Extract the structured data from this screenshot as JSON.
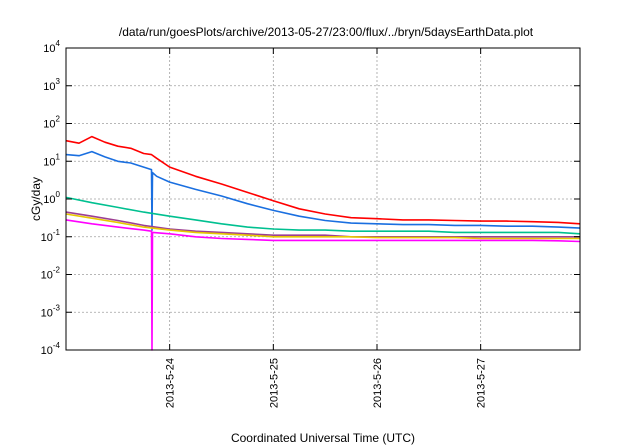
{
  "chart_data": {
    "type": "line",
    "title": "/data/run/goesPlots/archive/2013-05-27/23:00/flux/../bryn/5daysEarthData.plot",
    "xlabel": "Coordinated Universal Time (UTC)",
    "ylabel": "cGy/day",
    "yscale": "log",
    "ylim": [
      0.0001,
      10000
    ],
    "y_ticks": [
      {
        "base": "10",
        "exp": "-4",
        "value": 0.0001
      },
      {
        "base": "10",
        "exp": "-3",
        "value": 0.001
      },
      {
        "base": "10",
        "exp": "-2",
        "value": 0.01
      },
      {
        "base": "10",
        "exp": "-1",
        "value": 0.1
      },
      {
        "base": "10",
        "exp": "0",
        "value": 1
      },
      {
        "base": "10",
        "exp": "1",
        "value": 10
      },
      {
        "base": "10",
        "exp": "2",
        "value": 100
      },
      {
        "base": "10",
        "exp": "3",
        "value": 1000
      },
      {
        "base": "10",
        "exp": "4",
        "value": 10000
      }
    ],
    "xlim": [
      "2013-05-23T00:00",
      "2013-05-27T23:00"
    ],
    "x_ticks": [
      "2013-5-24",
      "2013-5-25",
      "2013-5-26",
      "2013-5-27"
    ],
    "x_tick_values": [
      "2013-05-24T00:00",
      "2013-05-25T00:00",
      "2013-05-26T00:00",
      "2013-05-27T00:00"
    ],
    "grid": true,
    "series": [
      {
        "color": "#ff0000",
        "x": [
          "2013-05-23T00:00",
          "2013-05-23T03:00",
          "2013-05-23T06:00",
          "2013-05-23T09:00",
          "2013-05-23T12:00",
          "2013-05-23T15:00",
          "2013-05-23T18:00",
          "2013-05-23T19:48",
          "2013-05-23T21:00",
          "2013-05-24T00:00",
          "2013-05-24T06:00",
          "2013-05-24T12:00",
          "2013-05-24T18:00",
          "2013-05-25T00:00",
          "2013-05-25T06:00",
          "2013-05-25T12:00",
          "2013-05-25T18:00",
          "2013-05-26T00:00",
          "2013-05-26T06:00",
          "2013-05-26T12:00",
          "2013-05-26T18:00",
          "2013-05-27T00:00",
          "2013-05-27T06:00",
          "2013-05-27T12:00",
          "2013-05-27T18:00",
          "2013-05-27T23:00"
        ],
        "values": [
          35,
          30,
          45,
          32,
          25,
          22,
          16,
          15,
          12,
          7,
          4,
          2.5,
          1.5,
          0.9,
          0.55,
          0.4,
          0.32,
          0.3,
          0.28,
          0.28,
          0.27,
          0.26,
          0.26,
          0.25,
          0.24,
          0.22
        ]
      },
      {
        "color": "#1a6fe0",
        "x": [
          "2013-05-23T00:00",
          "2013-05-23T03:00",
          "2013-05-23T06:00",
          "2013-05-23T09:00",
          "2013-05-23T12:00",
          "2013-05-23T15:00",
          "2013-05-23T18:00",
          "2013-05-23T19:48",
          "2013-05-23T19:55",
          "2013-05-23T20:02",
          "2013-05-23T21:00",
          "2013-05-24T00:00",
          "2013-05-24T06:00",
          "2013-05-24T12:00",
          "2013-05-24T18:00",
          "2013-05-25T00:00",
          "2013-05-25T06:00",
          "2013-05-25T12:00",
          "2013-05-25T18:00",
          "2013-05-26T00:00",
          "2013-05-26T06:00",
          "2013-05-26T12:00",
          "2013-05-26T18:00",
          "2013-05-27T00:00",
          "2013-05-27T06:00",
          "2013-05-27T12:00",
          "2013-05-27T18:00",
          "2013-05-27T23:00"
        ],
        "values": [
          15,
          14,
          18,
          13,
          10,
          9,
          7,
          6,
          0.15,
          5,
          4,
          2.8,
          1.8,
          1.2,
          0.75,
          0.5,
          0.35,
          0.27,
          0.23,
          0.22,
          0.21,
          0.21,
          0.2,
          0.2,
          0.19,
          0.19,
          0.18,
          0.17
        ]
      },
      {
        "color": "#00c090",
        "x": [
          "2013-05-23T00:00",
          "2013-05-23T06:00",
          "2013-05-23T12:00",
          "2013-05-23T18:00",
          "2013-05-24T00:00",
          "2013-05-24T06:00",
          "2013-05-24T12:00",
          "2013-05-24T18:00",
          "2013-05-25T00:00",
          "2013-05-25T06:00",
          "2013-05-25T12:00",
          "2013-05-25T18:00",
          "2013-05-26T00:00",
          "2013-05-26T06:00",
          "2013-05-26T12:00",
          "2013-05-26T18:00",
          "2013-05-27T00:00",
          "2013-05-27T06:00",
          "2013-05-27T12:00",
          "2013-05-27T18:00",
          "2013-05-27T23:00"
        ],
        "values": [
          1.1,
          0.8,
          0.6,
          0.45,
          0.35,
          0.28,
          0.22,
          0.18,
          0.16,
          0.15,
          0.15,
          0.14,
          0.14,
          0.14,
          0.14,
          0.13,
          0.13,
          0.13,
          0.13,
          0.13,
          0.12
        ]
      },
      {
        "color": "#9c3f93",
        "x": [
          "2013-05-23T00:00",
          "2013-05-23T06:00",
          "2013-05-23T12:00",
          "2013-05-23T18:00",
          "2013-05-24T00:00",
          "2013-05-24T06:00",
          "2013-05-24T12:00",
          "2013-05-24T18:00",
          "2013-05-25T00:00",
          "2013-05-25T06:00",
          "2013-05-25T12:00",
          "2013-05-25T18:00",
          "2013-05-26T00:00",
          "2013-05-26T06:00",
          "2013-05-26T12:00",
          "2013-05-26T18:00",
          "2013-05-27T00:00",
          "2013-05-27T06:00",
          "2013-05-27T12:00",
          "2013-05-27T18:00",
          "2013-05-27T23:00"
        ],
        "values": [
          0.45,
          0.35,
          0.27,
          0.2,
          0.16,
          0.14,
          0.13,
          0.12,
          0.11,
          0.11,
          0.11,
          0.1,
          0.1,
          0.1,
          0.1,
          0.1,
          0.1,
          0.1,
          0.1,
          0.1,
          0.1
        ]
      },
      {
        "color": "#e8c800",
        "x": [
          "2013-05-23T00:00",
          "2013-05-23T06:00",
          "2013-05-23T12:00",
          "2013-05-23T18:00",
          "2013-05-24T00:00",
          "2013-05-24T06:00",
          "2013-05-24T12:00",
          "2013-05-24T18:00",
          "2013-05-25T00:00",
          "2013-05-25T06:00",
          "2013-05-25T12:00",
          "2013-05-25T18:00",
          "2013-05-26T00:00",
          "2013-05-26T06:00",
          "2013-05-26T12:00",
          "2013-05-26T18:00",
          "2013-05-27T00:00",
          "2013-05-27T06:00",
          "2013-05-27T12:00",
          "2013-05-27T18:00",
          "2013-05-27T23:00"
        ],
        "values": [
          0.4,
          0.31,
          0.24,
          0.18,
          0.15,
          0.13,
          0.12,
          0.11,
          0.1,
          0.1,
          0.1,
          0.1,
          0.095,
          0.095,
          0.095,
          0.095,
          0.09,
          0.09,
          0.09,
          0.09,
          0.09
        ]
      },
      {
        "color": "#ff00ff",
        "x": [
          "2013-05-23T00:00",
          "2013-05-23T06:00",
          "2013-05-23T12:00",
          "2013-05-23T18:00",
          "2013-05-23T19:48",
          "2013-05-23T19:55",
          "2013-05-23T20:02",
          "2013-05-24T00:00",
          "2013-05-24T06:00",
          "2013-05-24T12:00",
          "2013-05-24T18:00",
          "2013-05-25T00:00",
          "2013-05-25T06:00",
          "2013-05-25T12:00",
          "2013-05-25T18:00",
          "2013-05-26T00:00",
          "2013-05-26T06:00",
          "2013-05-26T12:00",
          "2013-05-26T18:00",
          "2013-05-27T00:00",
          "2013-05-27T06:00",
          "2013-05-27T12:00",
          "2013-05-27T18:00",
          "2013-05-27T23:00"
        ],
        "values": [
          0.28,
          0.22,
          0.18,
          0.15,
          0.14,
          0.0001,
          0.13,
          0.12,
          0.1,
          0.09,
          0.085,
          0.08,
          0.08,
          0.08,
          0.08,
          0.08,
          0.08,
          0.08,
          0.08,
          0.08,
          0.08,
          0.08,
          0.078,
          0.075
        ]
      }
    ]
  }
}
